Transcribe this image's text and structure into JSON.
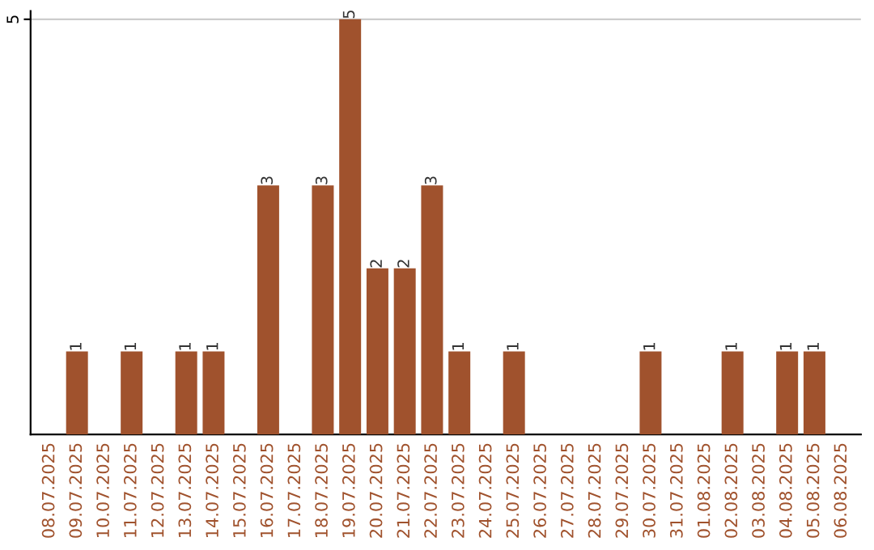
{
  "chart_data": {
    "type": "bar",
    "categories": [
      "08.07.2025",
      "09.07.2025",
      "10.07.2025",
      "11.07.2025",
      "12.07.2025",
      "13.07.2025",
      "14.07.2025",
      "15.07.2025",
      "16.07.2025",
      "17.07.2025",
      "18.07.2025",
      "19.07.2025",
      "20.07.2025",
      "21.07.2025",
      "22.07.2025",
      "23.07.2025",
      "24.07.2025",
      "25.07.2025",
      "26.07.2025",
      "27.07.2025",
      "28.07.2025",
      "29.07.2025",
      "30.07.2025",
      "31.07.2025",
      "01.08.2025",
      "02.08.2025",
      "03.08.2025",
      "04.08.2025",
      "05.08.2025",
      "06.08.2025"
    ],
    "values": [
      0,
      1,
      0,
      1,
      0,
      1,
      1,
      0,
      3,
      0,
      3,
      5,
      2,
      2,
      3,
      1,
      0,
      1,
      0,
      0,
      0,
      0,
      1,
      0,
      0,
      1,
      0,
      1,
      1,
      0
    ],
    "value_labels": [
      null,
      "1",
      null,
      "1",
      null,
      "1",
      "1",
      null,
      "3",
      null,
      "3",
      "5",
      "2",
      "2",
      "3",
      "1",
      null,
      "1",
      null,
      null,
      null,
      null,
      "1",
      null,
      null,
      "1",
      null,
      "1",
      "1",
      null
    ],
    "color": "#a0522d",
    "ylim": [
      0,
      5.1
    ],
    "yticks": [
      5
    ],
    "grid": "y"
  }
}
